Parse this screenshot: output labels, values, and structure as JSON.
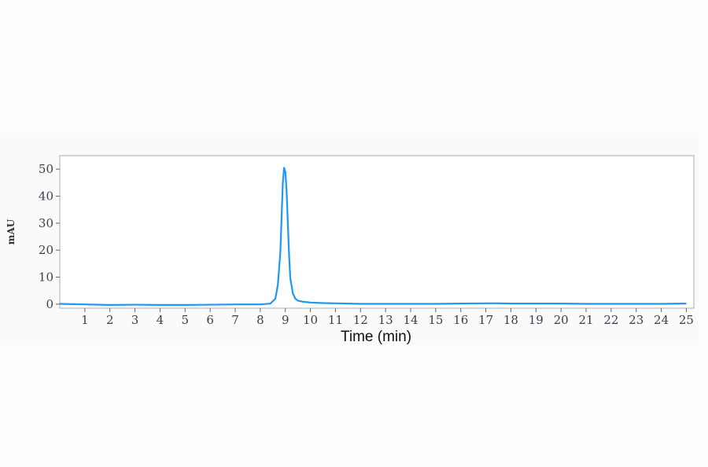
{
  "chart_data": {
    "type": "line",
    "title": "",
    "xlabel": "Time (min)",
    "ylabel": "mAU",
    "xlim": [
      0,
      25.3
    ],
    "ylim": [
      -1.5,
      55
    ],
    "x_ticks": [
      1,
      2,
      3,
      4,
      5,
      6,
      7,
      8,
      9,
      10,
      11,
      12,
      13,
      14,
      15,
      16,
      17,
      18,
      19,
      20,
      21,
      22,
      23,
      24,
      25
    ],
    "y_ticks": [
      0,
      10,
      20,
      30,
      40,
      50
    ],
    "grid": false,
    "legend": "none",
    "color": "#2196f3",
    "series": [
      {
        "x": [
          0,
          1,
          2,
          3,
          4,
          5,
          6,
          7,
          8,
          8.4,
          8.6,
          8.7,
          8.8,
          8.85,
          8.9,
          8.95,
          9.0,
          9.05,
          9.1,
          9.15,
          9.2,
          9.3,
          9.4,
          9.5,
          9.7,
          10,
          10.5,
          11,
          12,
          13,
          14,
          15,
          16,
          17,
          17.5,
          18,
          19,
          20,
          21,
          22,
          23,
          24,
          25
        ],
        "y": [
          0.1,
          -0.1,
          -0.3,
          -0.2,
          -0.3,
          -0.3,
          -0.2,
          -0.1,
          -0.1,
          0.2,
          2,
          7,
          19,
          32,
          45,
          50.5,
          49,
          42,
          30,
          18,
          9.5,
          4,
          2,
          1.3,
          0.9,
          0.6,
          0.4,
          0.3,
          0.1,
          0.1,
          0.1,
          0.1,
          0.2,
          0.3,
          0.3,
          0.2,
          0.2,
          0.2,
          0.1,
          0.1,
          0.1,
          0.1,
          0.2
        ]
      }
    ]
  }
}
